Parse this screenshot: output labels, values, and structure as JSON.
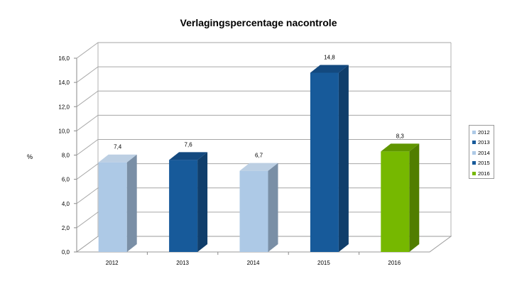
{
  "chart_data": {
    "type": "bar",
    "title": "Verlagingspercentage nacontrole",
    "xlabel": "",
    "ylabel": "%",
    "categories": [
      "2012",
      "2013",
      "2014",
      "2015",
      "2016"
    ],
    "values": [
      7.4,
      7.6,
      6.7,
      14.8,
      8.3
    ],
    "data_labels": [
      "7,4",
      "7,6",
      "6,7",
      "14,8",
      "8,3"
    ],
    "ylim": [
      0,
      16
    ],
    "y_ticks": [
      "0,0",
      "2,0",
      "4,0",
      "6,0",
      "8,0",
      "10,0",
      "12,0",
      "14,0",
      "16,0"
    ],
    "grid": true,
    "legend_placement": "right",
    "legend": [
      {
        "label": "2012",
        "color": "#adc9e6"
      },
      {
        "label": "2013",
        "color": "#175a9a"
      },
      {
        "label": "2014",
        "color": "#adc9e6"
      },
      {
        "label": "2015",
        "color": "#175a9a"
      },
      {
        "label": "2016",
        "color": "#76b800"
      }
    ],
    "bar_colors": [
      {
        "front": "#adc9e6",
        "side": "#7a8fa6",
        "top": "#bccfe3"
      },
      {
        "front": "#175a9a",
        "side": "#103e6b",
        "top": "#13497f"
      },
      {
        "front": "#adc9e6",
        "side": "#7a8fa6",
        "top": "#bccfe3"
      },
      {
        "front": "#175a9a",
        "side": "#103e6b",
        "top": "#13497f"
      },
      {
        "front": "#76b800",
        "side": "#517e00",
        "top": "#609600"
      }
    ]
  }
}
